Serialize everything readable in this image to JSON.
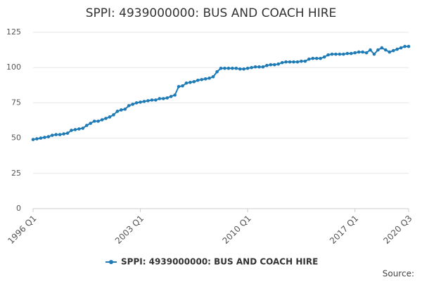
{
  "chart_data": {
    "type": "line",
    "title": "SPPI: 4939000000: BUS AND COACH HIRE",
    "categories": [
      "1996 Q1",
      null,
      null,
      null,
      null,
      null,
      null,
      null,
      null,
      null,
      null,
      null,
      null,
      null,
      null,
      null,
      null,
      null,
      null,
      null,
      null,
      null,
      null,
      null,
      null,
      null,
      null,
      null,
      "2003 Q1",
      null,
      null,
      null,
      null,
      null,
      null,
      null,
      null,
      null,
      null,
      null,
      null,
      null,
      null,
      null,
      null,
      null,
      null,
      null,
      null,
      null,
      null,
      null,
      null,
      null,
      null,
      null,
      "2010 Q1",
      null,
      null,
      null,
      null,
      null,
      null,
      null,
      null,
      null,
      null,
      null,
      null,
      null,
      null,
      null,
      null,
      null,
      null,
      null,
      null,
      null,
      null,
      null,
      null,
      null,
      null,
      null,
      "2017 Q1",
      null,
      null,
      null,
      null,
      null,
      null,
      null,
      null,
      null,
      null,
      null,
      null,
      null,
      "2020 Q3"
    ],
    "series": [
      {
        "name": "SPPI: 4939000000: BUS AND COACH HIRE",
        "color": "#1f7bb6",
        "values": [
          49,
          49.5,
          50,
          50.5,
          51,
          52,
          52.5,
          52.5,
          53,
          53.5,
          55.5,
          56,
          56.5,
          57,
          59,
          60.5,
          62,
          62,
          63,
          64,
          65,
          66.5,
          69,
          70,
          70.5,
          73,
          74,
          75,
          75.5,
          76,
          76.5,
          77,
          77,
          78,
          78,
          78.5,
          79.5,
          80.5,
          86.5,
          87,
          89,
          89.5,
          90,
          91,
          91.5,
          92,
          92.5,
          93.5,
          97,
          99.5,
          99.5,
          99.5,
          99.5,
          99.5,
          99,
          99,
          99.5,
          100,
          100.5,
          100.5,
          100.5,
          101.5,
          102,
          102,
          102.5,
          103.5,
          104,
          104,
          104,
          104,
          104.5,
          104.5,
          106,
          106.5,
          106.5,
          106.5,
          107.5,
          109,
          109.5,
          109.5,
          109.5,
          109.5,
          110,
          110,
          110.5,
          111,
          111,
          110.5,
          112.5,
          109.5,
          112.5,
          114,
          112.5,
          111,
          112,
          113,
          114,
          115,
          115
        ]
      }
    ],
    "ylim": [
      0,
      125
    ],
    "yticks": [
      0,
      25,
      50,
      75,
      100,
      125
    ],
    "grid": true,
    "legend": "bottom",
    "source": "Source:"
  }
}
